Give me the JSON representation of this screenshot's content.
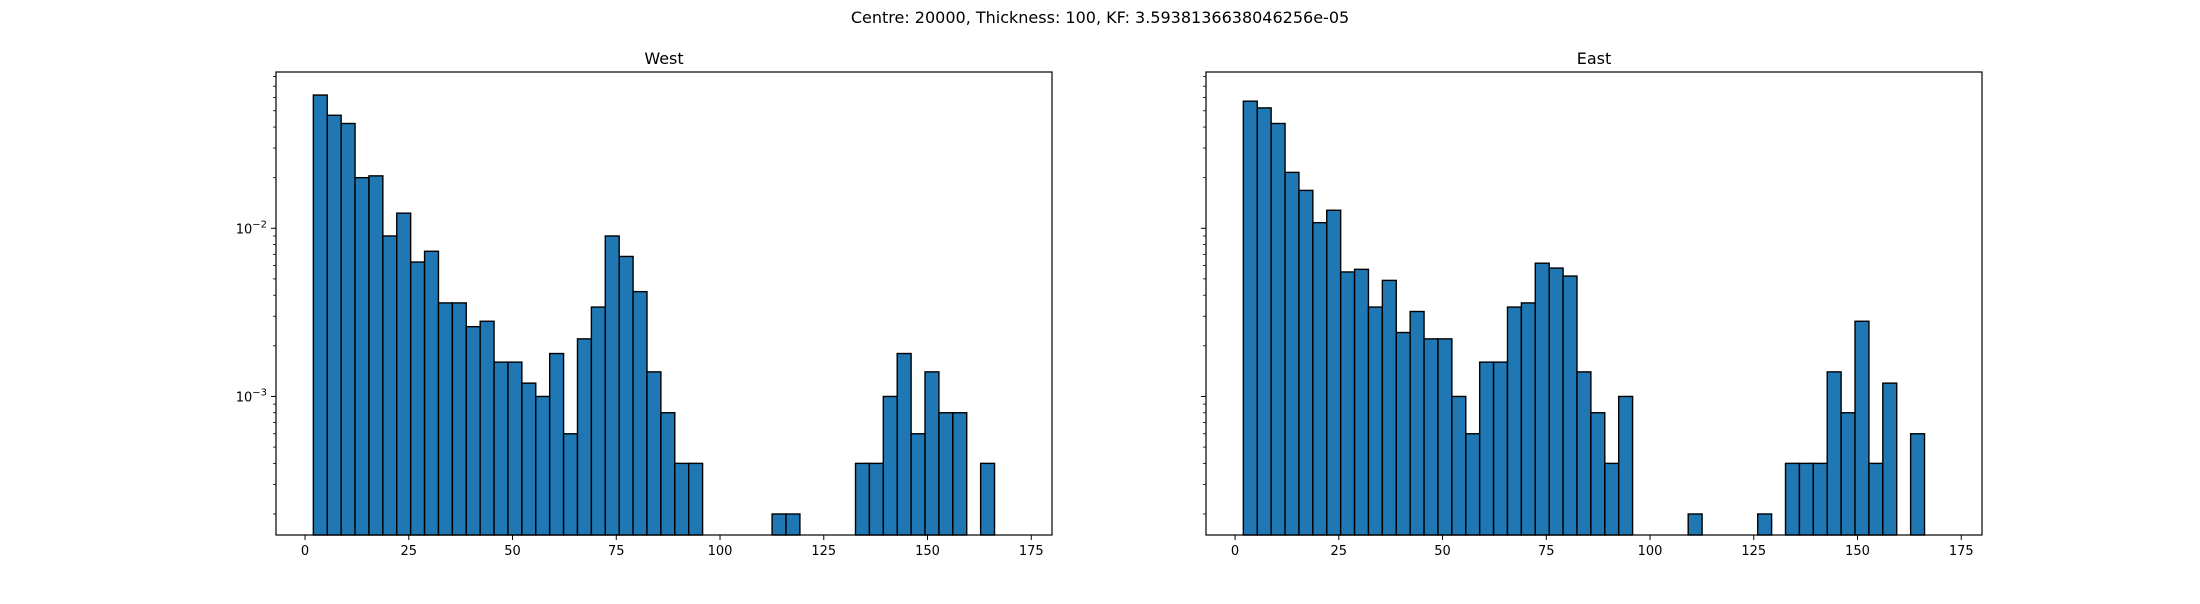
{
  "suptitle": "Centre: 20000, Thickness: 100, KF: 3.5938136638046256e-05",
  "colors": {
    "bar_fill": "#1f77b4",
    "bar_edge": "#000000"
  },
  "chart_data": [
    {
      "type": "bar",
      "title": "West",
      "xlabel": "",
      "ylabel": "",
      "yscale": "log",
      "xlim": [
        -7,
        180
      ],
      "ylim": [
        0.00015,
        0.085
      ],
      "xticks": [
        0,
        25,
        50,
        75,
        100,
        125,
        150,
        175
      ],
      "yticks": [
        {
          "value": 0.01,
          "label": "10^-2"
        },
        {
          "value": 0.001,
          "label": "10^-3"
        }
      ],
      "bin_width": 3.35,
      "bin_start": 2,
      "values": [
        0.062,
        0.047,
        0.042,
        0.02,
        0.0205,
        0.009,
        0.0123,
        0.0063,
        0.0073,
        0.0036,
        0.0036,
        0.0026,
        0.0028,
        0.0016,
        0.0016,
        0.0012,
        0.001,
        0.0018,
        0.0006,
        0.0022,
        0.0034,
        0.009,
        0.0068,
        0.0042,
        0.0014,
        0.0008,
        0.0004,
        0.0004,
        0,
        0,
        0,
        0,
        0,
        0.0002,
        0.0002,
        0,
        0,
        0,
        0,
        0.0004,
        0.0004,
        0.001,
        0.0018,
        0.0006,
        0.0014,
        0.0008,
        0.0008,
        0,
        0.0004
      ]
    },
    {
      "type": "bar",
      "title": "East",
      "xlabel": "",
      "ylabel": "",
      "yscale": "log",
      "xlim": [
        -7,
        180
      ],
      "ylim": [
        0.00015,
        0.085
      ],
      "xticks": [
        0,
        25,
        50,
        75,
        100,
        125,
        150,
        175
      ],
      "yticks": [
        {
          "value": 0.01,
          "label": ""
        },
        {
          "value": 0.001,
          "label": ""
        }
      ],
      "bin_width": 3.35,
      "bin_start": 2,
      "values": [
        0.057,
        0.052,
        0.042,
        0.0215,
        0.0168,
        0.0108,
        0.0128,
        0.0055,
        0.0057,
        0.0034,
        0.0049,
        0.0024,
        0.0032,
        0.0022,
        0.0022,
        0.001,
        0.0006,
        0.0016,
        0.0016,
        0.0034,
        0.0036,
        0.0062,
        0.0058,
        0.0052,
        0.0014,
        0.0008,
        0.0004,
        0.001,
        0,
        0,
        0,
        0,
        0.0002,
        0,
        0,
        0,
        0,
        0.0002,
        0,
        0.0004,
        0.0004,
        0.0004,
        0.0014,
        0.0008,
        0.0028,
        0.0004,
        0.0012,
        0,
        0.0006
      ]
    }
  ]
}
